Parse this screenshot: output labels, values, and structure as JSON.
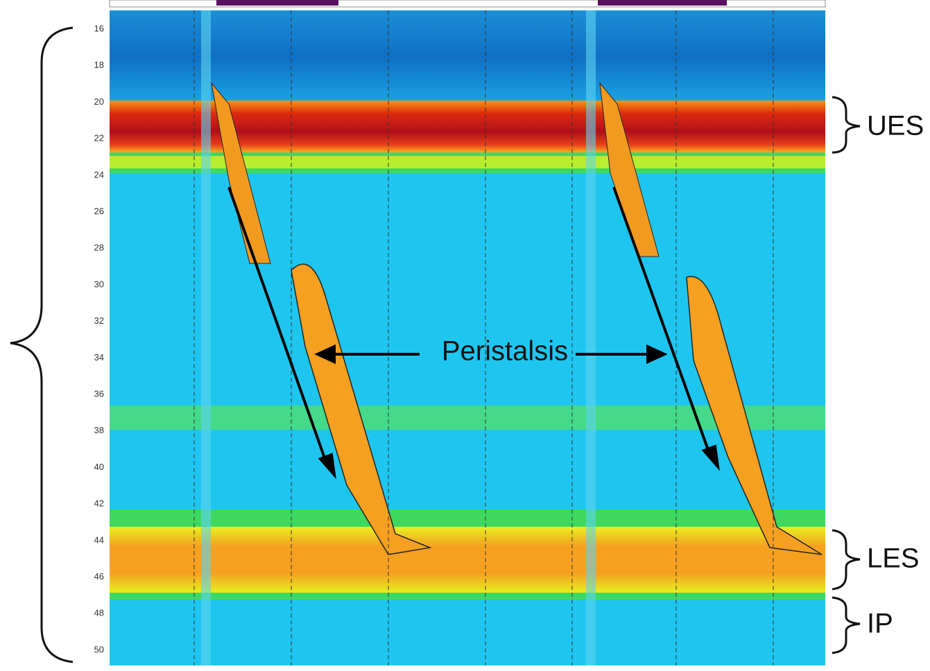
{
  "axis": {
    "ticks": [
      16,
      18,
      20,
      22,
      24,
      26,
      28,
      30,
      32,
      34,
      36,
      38,
      40,
      42,
      44,
      46,
      48,
      50
    ]
  },
  "annotations": {
    "peristalsis": "Peristalsis",
    "ues": "UES",
    "les": "LES",
    "ip": "IP"
  }
}
